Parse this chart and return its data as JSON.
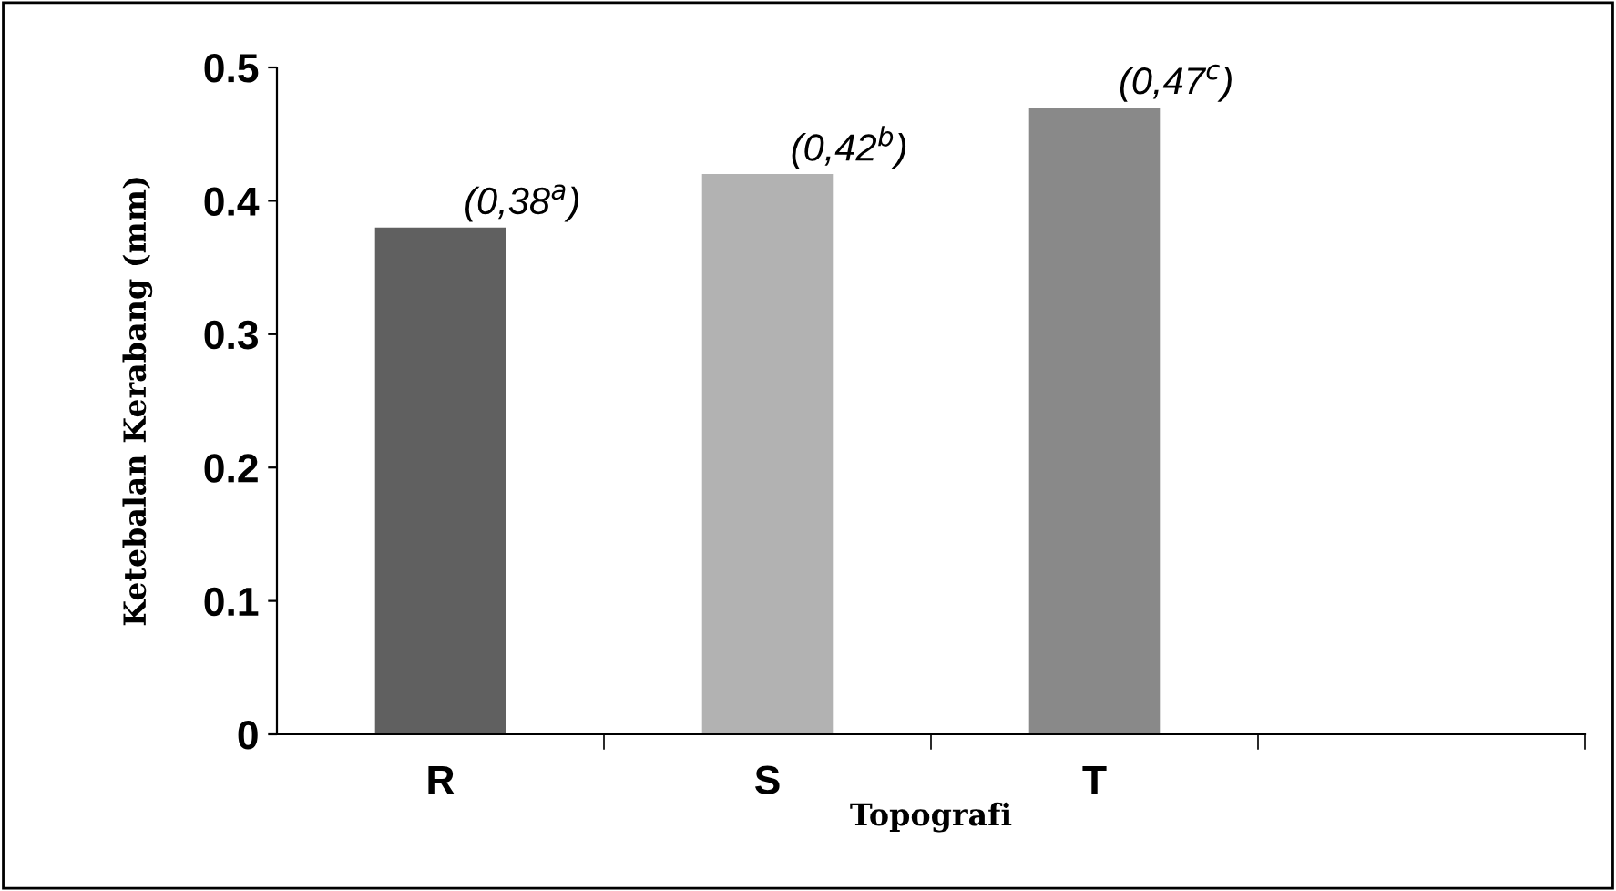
{
  "chart_data": {
    "type": "bar",
    "xlabel": "Topografi",
    "ylabel": "Ketebalan Kerabang (mm)",
    "categories": [
      "R",
      "S",
      "T",
      null
    ],
    "values": [
      0.38,
      0.42,
      0.47,
      null
    ],
    "colors": [
      "#606060",
      "#b2b2b2",
      "#898989",
      "#898989"
    ],
    "value_labels": [
      "(0,38$^{a}$)",
      "(0,42$^{b}$)",
      "(0,47$^{c}$)",
      null
    ],
    "ylim": [
      0,
      0.5
    ],
    "yticks": [
      0,
      0.1,
      0.2,
      0.3,
      0.4,
      0.5
    ],
    "grid": false
  }
}
